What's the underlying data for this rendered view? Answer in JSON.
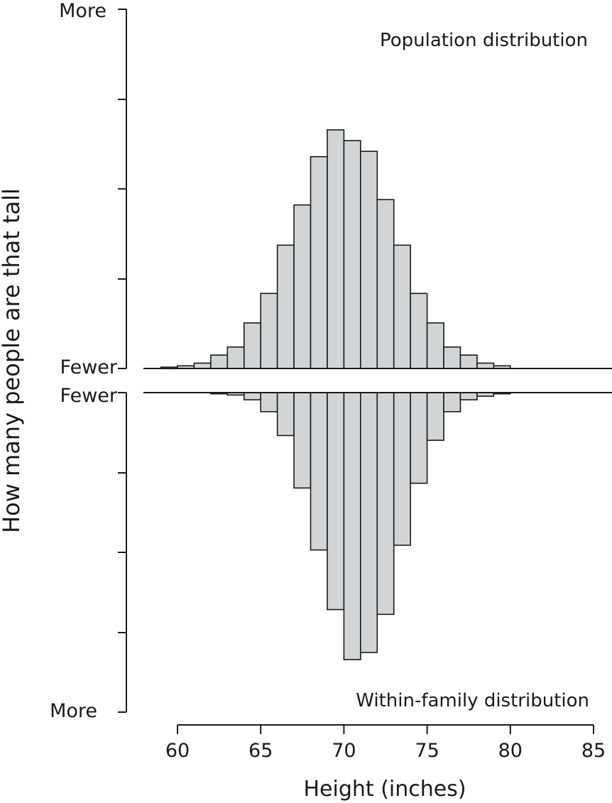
{
  "chart_data": [
    {
      "type": "bar",
      "label": "Population distribution",
      "x": [
        59.5,
        60.5,
        61.5,
        62.5,
        63.5,
        64.5,
        65.5,
        66.5,
        67.5,
        68.5,
        69.5,
        70.5,
        71.5,
        72.5,
        73.5,
        74.5,
        75.5,
        76.5,
        77.5,
        78.5,
        79.5
      ],
      "values": [
        0.5,
        1,
        2,
        5,
        8,
        17,
        28,
        46,
        61,
        79,
        89,
        85,
        81,
        63,
        46,
        28,
        17,
        8,
        5,
        2,
        1
      ],
      "ylim": [
        0,
        134
      ],
      "y_tick_labels": {
        "top": "More",
        "bottom": "Fewer"
      }
    },
    {
      "type": "bar",
      "label": "Within-family distribution",
      "x": [
        62.5,
        63.5,
        64.5,
        65.5,
        66.5,
        67.5,
        68.5,
        69.5,
        70.5,
        71.5,
        72.5,
        73.5,
        74.5,
        75.5,
        76.5,
        77.5,
        78.5,
        79.5
      ],
      "values": [
        0.5,
        1,
        3,
        8,
        18,
        40,
        66,
        91,
        112,
        109,
        93,
        64,
        38,
        20,
        8,
        3,
        1.5,
        0.5
      ],
      "ylim": [
        0,
        134
      ],
      "inverted": true,
      "y_tick_labels": {
        "top": "Fewer",
        "bottom": "More"
      }
    }
  ],
  "x_axis": {
    "label": "Height (inches)",
    "ticks": [
      60,
      65,
      70,
      75,
      80,
      85
    ],
    "range": [
      58,
      85
    ]
  },
  "y_axis_label": "How many people are that tall",
  "colors": {
    "bar_fill": "#d3d4d6",
    "stroke": "#1a1a1a"
  }
}
